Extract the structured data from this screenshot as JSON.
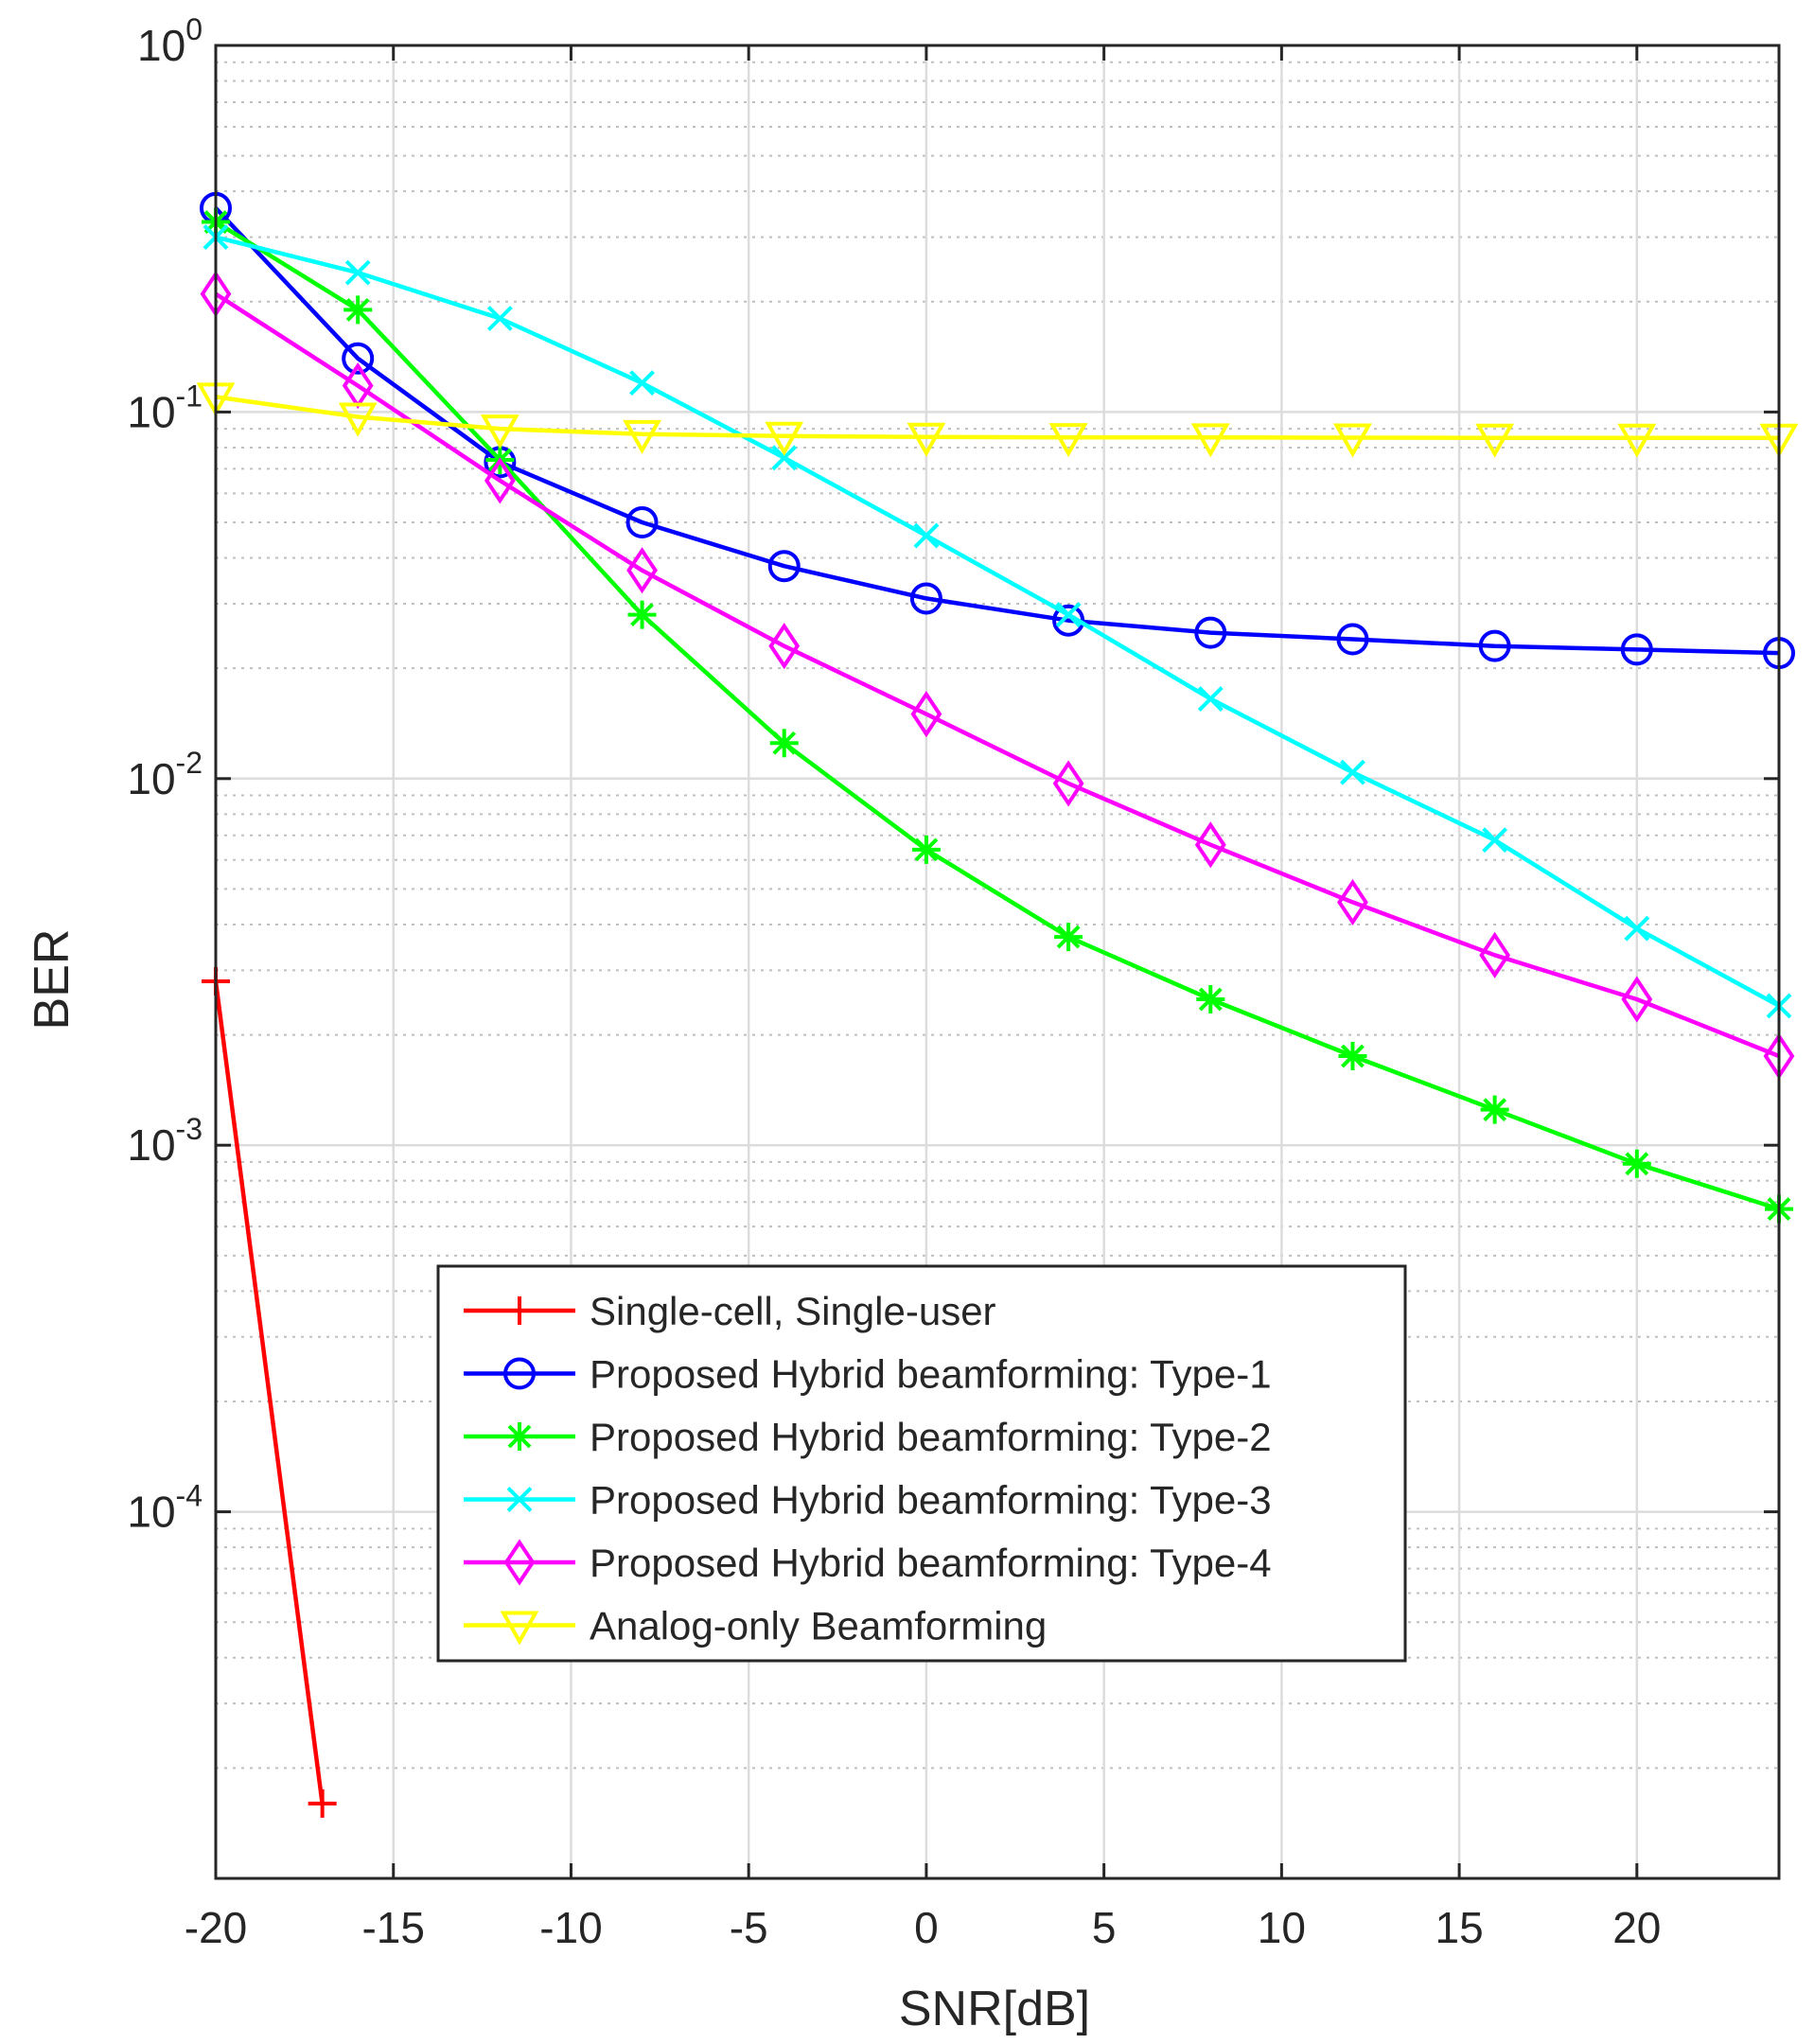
{
  "chart_data": {
    "type": "line",
    "xlabel": "SNR[dB]",
    "ylabel": "BER",
    "xlim": [
      -20,
      24
    ],
    "ylim": [
      1e-05,
      1
    ],
    "yscale": "log",
    "grid": true,
    "legend_location": "bottom-left",
    "x_ticks": [
      "-20",
      "-15",
      "-10",
      "-5",
      "0",
      "5",
      "10",
      "15",
      "20"
    ],
    "x_tick_values": [
      -20,
      -15,
      -10,
      -5,
      0,
      5,
      10,
      15,
      20
    ],
    "y_ticks": [
      {
        "value": 1,
        "base": "10",
        "exp": "0"
      },
      {
        "value": 0.1,
        "base": "10",
        "exp": "-1"
      },
      {
        "value": 0.01,
        "base": "10",
        "exp": "-2"
      },
      {
        "value": 0.001,
        "base": "10",
        "exp": "-3"
      },
      {
        "value": 0.0001,
        "base": "10",
        "exp": "-4"
      }
    ],
    "series": [
      {
        "name": "Single-cell, Single-user",
        "color": "#ff0000",
        "marker": "plus",
        "x": [
          -20,
          -17
        ],
        "y": [
          0.0028,
          1.6e-05
        ]
      },
      {
        "name": "Proposed Hybrid beamforming: Type-1",
        "color": "#0000ff",
        "marker": "circle",
        "x": [
          -20,
          -16,
          -12,
          -8,
          -4,
          0,
          4,
          8,
          12,
          16,
          20,
          24
        ],
        "y": [
          0.36,
          0.14,
          0.073,
          0.05,
          0.038,
          0.031,
          0.027,
          0.025,
          0.024,
          0.023,
          0.0225,
          0.022
        ]
      },
      {
        "name": "Proposed Hybrid beamforming: Type-2",
        "color": "#00ff00",
        "marker": "asterisk",
        "x": [
          -20,
          -16,
          -12,
          -8,
          -4,
          0,
          4,
          8,
          12,
          16,
          20,
          24
        ],
        "y": [
          0.33,
          0.19,
          0.074,
          0.028,
          0.0125,
          0.0064,
          0.0037,
          0.0025,
          0.00175,
          0.00125,
          0.00089,
          0.00067
        ]
      },
      {
        "name": "Proposed Hybrid beamforming: Type-3",
        "color": "#00ffff",
        "marker": "x",
        "x": [
          -20,
          -16,
          -12,
          -8,
          -4,
          0,
          4,
          8,
          12,
          16,
          20,
          24
        ],
        "y": [
          0.3,
          0.24,
          0.18,
          0.12,
          0.075,
          0.046,
          0.028,
          0.0165,
          0.0104,
          0.0068,
          0.0039,
          0.0024
        ]
      },
      {
        "name": "Proposed Hybrid beamforming: Type-4",
        "color": "#ff00ff",
        "marker": "diamond",
        "x": [
          -20,
          -16,
          -12,
          -8,
          -4,
          0,
          4,
          8,
          12,
          16,
          20,
          24
        ],
        "y": [
          0.21,
          0.118,
          0.065,
          0.037,
          0.023,
          0.015,
          0.0097,
          0.0066,
          0.0046,
          0.0033,
          0.0025,
          0.00175
        ]
      },
      {
        "name": "Analog-only Beamforming",
        "color": "#ffff00",
        "marker": "triangle-down",
        "x": [
          -20,
          -16,
          -12,
          -8,
          -4,
          0,
          4,
          8,
          12,
          16,
          20,
          24
        ],
        "y": [
          0.11,
          0.097,
          0.09,
          0.087,
          0.086,
          0.0855,
          0.0853,
          0.0852,
          0.0851,
          0.085,
          0.085,
          0.085
        ]
      }
    ]
  }
}
